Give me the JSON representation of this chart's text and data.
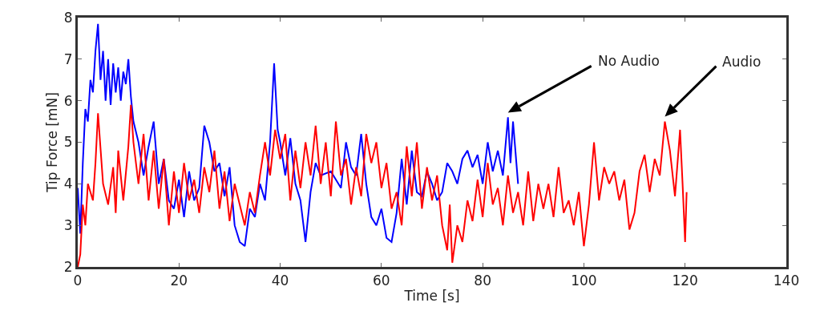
{
  "chart_data": {
    "type": "line",
    "xlabel": "Time [s]",
    "ylabel": "Tip Force [mN]",
    "xlim": [
      0,
      140
    ],
    "xticks": [
      0,
      20,
      40,
      60,
      80,
      100,
      120,
      140
    ],
    "ylim": [
      2,
      8
    ],
    "yticks": [
      2,
      3,
      4,
      5,
      6,
      7,
      8
    ],
    "grid": false,
    "legend": false,
    "marker": "none",
    "line_style": "solid",
    "series": [
      {
        "name": "No Audio",
        "color": "#0000ff",
        "x": [
          0,
          0.5,
          1,
          1.5,
          2,
          2.5,
          3,
          3.5,
          4,
          4.5,
          5,
          5.5,
          6,
          6.5,
          7,
          7.5,
          8,
          8.5,
          9,
          9.5,
          10,
          10.5,
          11,
          12,
          13,
          14,
          15,
          16,
          17,
          18,
          19,
          20,
          21,
          22,
          23,
          24,
          25,
          26,
          27,
          28,
          29,
          30,
          31,
          32,
          33,
          34,
          35,
          36,
          37,
          38,
          38.8,
          39.5,
          40,
          41,
          42,
          43,
          44,
          45,
          46,
          47,
          48,
          50,
          52,
          53,
          54,
          55,
          56,
          57,
          58,
          59,
          60,
          61,
          62,
          63,
          64,
          65,
          66,
          67,
          68,
          69,
          70,
          71,
          72,
          73,
          74,
          75,
          76,
          77,
          78,
          79,
          80,
          81,
          82,
          83,
          84,
          85,
          85.5,
          86,
          87
        ],
        "values": [
          3.9,
          2.8,
          4.5,
          5.8,
          5.5,
          6.5,
          6.2,
          7.2,
          7.85,
          6.5,
          7.2,
          6.0,
          7.0,
          5.9,
          6.9,
          6.2,
          6.8,
          6.0,
          6.7,
          6.4,
          7.0,
          6.1,
          5.5,
          5.0,
          4.2,
          4.9,
          5.5,
          4.0,
          4.6,
          3.6,
          3.4,
          4.1,
          3.2,
          4.3,
          3.6,
          3.9,
          5.4,
          5.0,
          4.3,
          4.5,
          3.7,
          4.4,
          3.0,
          2.6,
          2.5,
          3.4,
          3.2,
          4.0,
          3.6,
          5.0,
          6.9,
          5.3,
          5.0,
          4.2,
          5.1,
          4.0,
          3.6,
          2.6,
          3.8,
          4.5,
          4.2,
          4.3,
          3.9,
          5.0,
          4.4,
          4.2,
          5.2,
          4.0,
          3.2,
          3.0,
          3.4,
          2.7,
          2.6,
          3.3,
          4.6,
          3.5,
          4.8,
          3.8,
          3.7,
          4.3,
          4.0,
          3.6,
          3.8,
          4.5,
          4.3,
          4.0,
          4.6,
          4.8,
          4.4,
          4.7,
          4.0,
          5.0,
          4.3,
          4.8,
          4.2,
          5.6,
          4.5,
          5.5,
          4.0
        ]
      },
      {
        "name": "Audio",
        "color": "#ff0000",
        "x": [
          0,
          0.5,
          1,
          1.5,
          2,
          3,
          3.5,
          4,
          5,
          6,
          7,
          7.5,
          8,
          9,
          10,
          10.5,
          11,
          12,
          13,
          14,
          15,
          16,
          17,
          18,
          19,
          20,
          21,
          22,
          23,
          24,
          25,
          26,
          27,
          28,
          29,
          30,
          31,
          32,
          33,
          34,
          35,
          36,
          37,
          38,
          39,
          40,
          41,
          42,
          43,
          44,
          45,
          46,
          47,
          48,
          49,
          50,
          51,
          52,
          53,
          54,
          55,
          56,
          57,
          58,
          59,
          60,
          61,
          62,
          63,
          64,
          65,
          66,
          67,
          68,
          69,
          70,
          71,
          72,
          73,
          73.5,
          74,
          75,
          76,
          77,
          78,
          79,
          80,
          81,
          82,
          83,
          84,
          85,
          86,
          87,
          88,
          89,
          90,
          91,
          92,
          93,
          94,
          95,
          96,
          97,
          98,
          99,
          100,
          101,
          102,
          103,
          104,
          105,
          106,
          107,
          108,
          109,
          110,
          111,
          112,
          113,
          114,
          115,
          116,
          117,
          118,
          119,
          119.5,
          120,
          120.3
        ],
        "values": [
          2.0,
          2.3,
          3.5,
          3.0,
          4.0,
          3.6,
          4.5,
          5.7,
          4.0,
          3.5,
          4.4,
          3.3,
          4.8,
          3.6,
          4.9,
          5.9,
          5.0,
          4.0,
          5.2,
          3.6,
          4.8,
          3.4,
          4.6,
          3.0,
          4.3,
          3.3,
          4.5,
          3.6,
          4.1,
          3.3,
          4.4,
          3.8,
          4.8,
          3.4,
          4.3,
          3.1,
          4.0,
          3.5,
          3.0,
          3.8,
          3.3,
          4.2,
          5.0,
          4.2,
          5.3,
          4.6,
          5.2,
          3.6,
          4.8,
          3.9,
          5.0,
          4.2,
          5.4,
          4.0,
          5.0,
          3.7,
          5.5,
          4.2,
          4.6,
          3.5,
          4.4,
          3.7,
          5.2,
          4.5,
          5.0,
          3.9,
          4.5,
          3.4,
          3.8,
          3.0,
          4.9,
          3.7,
          5.0,
          3.4,
          4.4,
          3.6,
          4.2,
          3.0,
          2.4,
          3.5,
          2.1,
          3.0,
          2.6,
          3.6,
          3.1,
          4.1,
          3.2,
          4.5,
          3.5,
          3.9,
          3.0,
          4.2,
          3.3,
          3.8,
          3.0,
          4.3,
          3.1,
          4.0,
          3.4,
          4.0,
          3.2,
          4.4,
          3.3,
          3.6,
          3.0,
          3.8,
          2.5,
          3.5,
          5.0,
          3.6,
          4.4,
          4.0,
          4.3,
          3.6,
          4.1,
          2.9,
          3.3,
          4.3,
          4.7,
          3.8,
          4.6,
          4.2,
          5.5,
          4.8,
          3.7,
          5.3,
          4.0,
          2.6,
          3.8
        ]
      }
    ]
  }
}
